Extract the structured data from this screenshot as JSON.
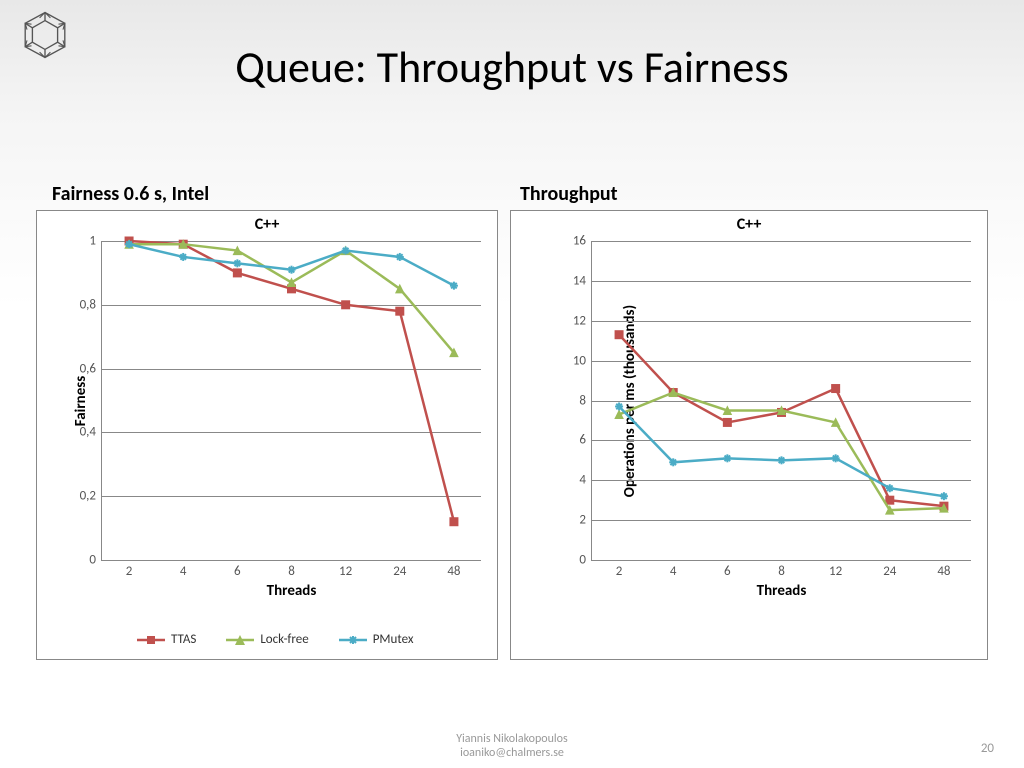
{
  "slide": {
    "title": "Queue: Throughput vs Fairness",
    "footer_line1": "Yiannis Nikolakopoulos",
    "footer_line2": "ioaniko@chalmers.se",
    "page_number": "20"
  },
  "colors": {
    "ttas": "#c0504d",
    "lockfree": "#9bbb59",
    "pmutex": "#4bacc6",
    "grid": "#888888",
    "text": "#000000"
  },
  "series_meta": {
    "ttas": {
      "label": "TTAS",
      "color": "#c0504d",
      "marker": "square"
    },
    "lockfree": {
      "label": "Lock-free",
      "color": "#9bbb59",
      "marker": "triangle"
    },
    "pmutex": {
      "label": "PMutex",
      "color": "#4bacc6",
      "marker": "asterisk"
    }
  },
  "left_chart": {
    "subtitle": "Fairness 0.6 s, Intel",
    "chart_title": "C++",
    "x_label": "Threads",
    "y_label": "Fairness",
    "x_categories": [
      "2",
      "4",
      "6",
      "8",
      "12",
      "24",
      "48"
    ],
    "y_ticks": [
      "0",
      "0,2",
      "0,4",
      "0,6",
      "0,8",
      "1"
    ],
    "y_min": 0,
    "y_max": 1,
    "y_step": 0.2,
    "series": {
      "ttas": [
        1.0,
        0.99,
        0.9,
        0.85,
        0.8,
        0.78,
        0.12
      ],
      "lockfree": [
        0.99,
        0.99,
        0.97,
        0.87,
        0.97,
        0.85,
        0.65
      ],
      "pmutex": [
        0.99,
        0.95,
        0.93,
        0.91,
        0.97,
        0.95,
        0.86
      ]
    },
    "line_width": 2.5,
    "marker_size": 8
  },
  "right_chart": {
    "subtitle": "Throughput",
    "chart_title": "C++",
    "x_label": "Threads",
    "y_label": "Operations per ms (thousands)",
    "x_categories": [
      "2",
      "4",
      "6",
      "8",
      "12",
      "24",
      "48"
    ],
    "y_ticks": [
      "0",
      "2",
      "4",
      "6",
      "8",
      "10",
      "12",
      "14",
      "16"
    ],
    "y_min": 0,
    "y_max": 16,
    "y_step": 2,
    "series": {
      "ttas": [
        11.3,
        8.4,
        6.9,
        7.4,
        8.6,
        3.0,
        2.7
      ],
      "lockfree": [
        7.3,
        8.4,
        7.5,
        7.5,
        6.9,
        2.5,
        2.6
      ],
      "pmutex": [
        7.7,
        4.9,
        5.1,
        5.0,
        5.1,
        3.6,
        3.2
      ]
    },
    "line_width": 2.5,
    "marker_size": 8
  }
}
